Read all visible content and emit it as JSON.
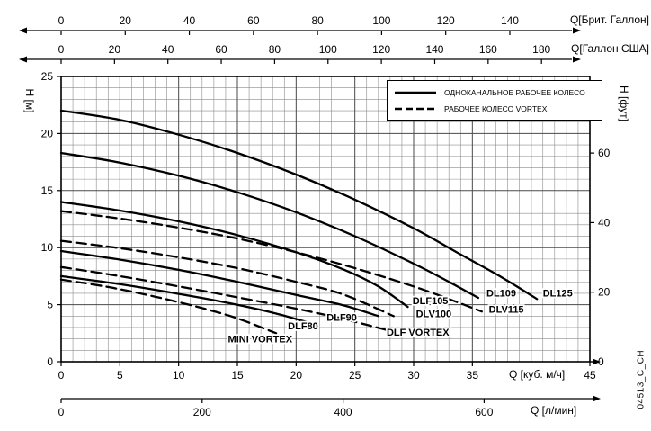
{
  "chart_data": {
    "type": "line",
    "line_color": "#000000",
    "axes": {
      "left": {
        "title": "H [м]",
        "ticks": [
          0,
          5,
          10,
          15,
          20,
          25
        ],
        "range": [
          0,
          25
        ]
      },
      "right": {
        "title": "H [фут]",
        "ticks": [
          0,
          20,
          40,
          60
        ],
        "ft_per_m": 3.28084
      },
      "top_brit": {
        "title": "Q[Брит. Галлон]",
        "ticks": [
          0,
          20,
          40,
          60,
          80,
          100,
          120,
          140
        ],
        "gal_per_m3h": 3.6662
      },
      "top_us": {
        "title": "Q[Галлон США]",
        "ticks": [
          0,
          20,
          40,
          60,
          80,
          100,
          120,
          140,
          160,
          180
        ],
        "gal_per_m3h": 4.4029
      },
      "bottom_m3h": {
        "title": "Q [куб. м/ч]",
        "ticks": [
          0,
          5,
          10,
          15,
          20,
          25,
          30,
          35,
          45
        ],
        "range": [
          0,
          45
        ]
      },
      "bottom_lmin": {
        "title": "Q [л/мин]",
        "ticks": [
          0,
          200,
          400,
          600
        ],
        "lmin_per_m3h": 16.6667
      }
    },
    "legend": {
      "items": [
        {
          "style": "solid",
          "label": "ОДНОКАНАЛЬНОЕ РАБОЧЕЕ КОЛЕСО"
        },
        {
          "style": "dashed",
          "label": "РАБОЧЕЕ КОЛЕСО VORTEX"
        }
      ]
    },
    "series": [
      {
        "name": "DL125",
        "style": "solid",
        "label_at": [
          41.0,
          5.7
        ],
        "points": [
          [
            0,
            22.0
          ],
          [
            5,
            21.2
          ],
          [
            10,
            19.9
          ],
          [
            15,
            18.3
          ],
          [
            20,
            16.4
          ],
          [
            25,
            14.2
          ],
          [
            30,
            11.7
          ],
          [
            34,
            9.4
          ],
          [
            37.5,
            7.4
          ],
          [
            40.5,
            5.5
          ]
        ]
      },
      {
        "name": "DL109",
        "style": "solid",
        "label_at": [
          36.2,
          5.7
        ],
        "points": [
          [
            0,
            18.3
          ],
          [
            5,
            17.45
          ],
          [
            10,
            16.3
          ],
          [
            15,
            14.85
          ],
          [
            20,
            13.1
          ],
          [
            25,
            11.0
          ],
          [
            30,
            8.6
          ],
          [
            33,
            7.0
          ],
          [
            35.5,
            5.6
          ]
        ]
      },
      {
        "name": "DLF105",
        "style": "solid",
        "label_at": [
          29.9,
          5.05
        ],
        "points": [
          [
            0,
            14.0
          ],
          [
            5,
            13.25
          ],
          [
            10,
            12.3
          ],
          [
            15,
            11.1
          ],
          [
            20,
            9.6
          ],
          [
            24,
            8.1
          ],
          [
            27,
            6.6
          ],
          [
            29.5,
            4.8
          ]
        ]
      },
      {
        "name": "DLF90",
        "style": "solid",
        "label_at": [
          22.6,
          3.6
        ],
        "points": [
          [
            0,
            9.7
          ],
          [
            5,
            8.95
          ],
          [
            10,
            8.05
          ],
          [
            15,
            7.0
          ],
          [
            20,
            5.85
          ],
          [
            24,
            4.95
          ],
          [
            27,
            4.0
          ]
        ]
      },
      {
        "name": "DLF80",
        "style": "solid",
        "label_at": [
          19.3,
          2.85
        ],
        "points": [
          [
            0,
            7.5
          ],
          [
            5,
            6.8
          ],
          [
            10,
            5.95
          ],
          [
            14,
            5.2
          ],
          [
            18,
            4.3
          ],
          [
            21,
            3.45
          ]
        ]
      },
      {
        "name": "DLV115",
        "style": "dashed",
        "label_at": [
          36.4,
          4.3
        ],
        "points": [
          [
            0,
            13.2
          ],
          [
            5,
            12.55
          ],
          [
            10,
            11.75
          ],
          [
            15,
            10.8
          ],
          [
            20,
            9.6
          ],
          [
            25,
            8.2
          ],
          [
            30,
            6.6
          ],
          [
            33,
            5.5
          ],
          [
            35.8,
            4.4
          ]
        ]
      },
      {
        "name": "DLV100",
        "style": "dashed",
        "label_at": [
          30.2,
          3.9
        ],
        "points": [
          [
            0,
            10.6
          ],
          [
            5,
            9.95
          ],
          [
            10,
            9.15
          ],
          [
            15,
            8.2
          ],
          [
            20,
            7.0
          ],
          [
            24,
            5.9
          ],
          [
            28.3,
            4.0
          ]
        ]
      },
      {
        "name": "DLF VORTEX",
        "style": "dashed",
        "label_at": [
          27.7,
          2.3
        ],
        "points": [
          [
            0,
            8.3
          ],
          [
            5,
            7.5
          ],
          [
            10,
            6.6
          ],
          [
            15,
            5.65
          ],
          [
            20,
            4.65
          ],
          [
            24,
            3.75
          ],
          [
            28,
            2.7
          ]
        ]
      },
      {
        "name": "MINI VORTEX",
        "style": "dashed",
        "label_at": [
          14.2,
          1.7
        ],
        "points": [
          [
            0,
            7.2
          ],
          [
            4,
            6.55
          ],
          [
            8,
            5.7
          ],
          [
            12,
            4.7
          ],
          [
            15,
            3.8
          ],
          [
            18.3,
            2.5
          ]
        ]
      }
    ],
    "watermark": "04513_C_CH"
  }
}
